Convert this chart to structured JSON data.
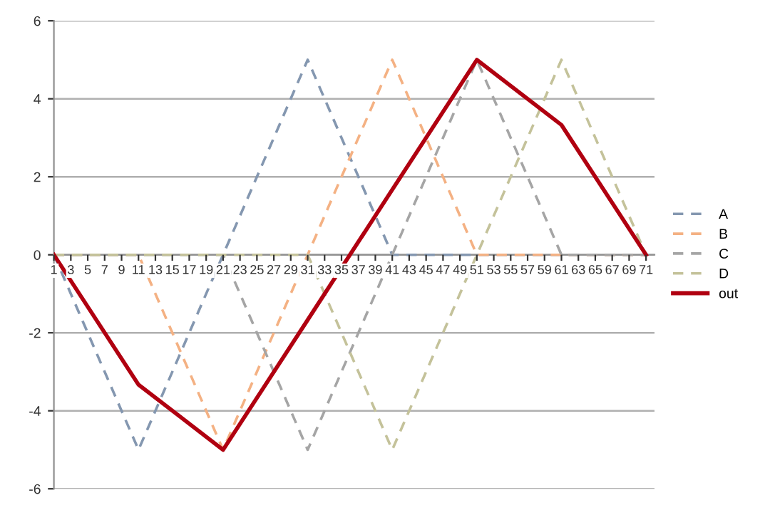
{
  "chart_data": {
    "type": "line",
    "x": [
      1,
      11,
      21,
      31,
      41,
      51,
      61,
      71
    ],
    "series": [
      {
        "name": "A",
        "color": "#8497b0",
        "line_style": "dashed",
        "values": [
          0,
          -5,
          0,
          5,
          0,
          0,
          0,
          0
        ]
      },
      {
        "name": "B",
        "color": "#f4b183",
        "line_style": "dashed",
        "values": [
          0,
          0,
          -5,
          0,
          5,
          0,
          0,
          0
        ]
      },
      {
        "name": "C",
        "color": "#a5a5a5",
        "line_style": "dashed",
        "values": [
          0,
          0,
          0,
          -5,
          0,
          5,
          0,
          0
        ]
      },
      {
        "name": "D",
        "color": "#c4c29a",
        "line_style": "dashed",
        "values": [
          0,
          0,
          0,
          0,
          -5,
          0,
          5,
          0
        ]
      },
      {
        "name": "out",
        "color": "#b00010",
        "line_style": "solid",
        "values": [
          0,
          -3.33,
          -5,
          -1.67,
          1.67,
          5,
          3.33,
          0
        ]
      }
    ],
    "xlim": [
      1,
      72
    ],
    "xticks": [
      1,
      3,
      5,
      7,
      9,
      11,
      13,
      15,
      17,
      19,
      21,
      23,
      25,
      27,
      29,
      31,
      33,
      35,
      37,
      39,
      41,
      43,
      45,
      47,
      49,
      51,
      53,
      55,
      57,
      59,
      61,
      63,
      65,
      67,
      69,
      71
    ],
    "ylim": [
      -6,
      6
    ],
    "yticks": [
      -6,
      -4,
      -2,
      0,
      2,
      4,
      6
    ],
    "grid": "y",
    "legend": "right",
    "marker": "none"
  }
}
